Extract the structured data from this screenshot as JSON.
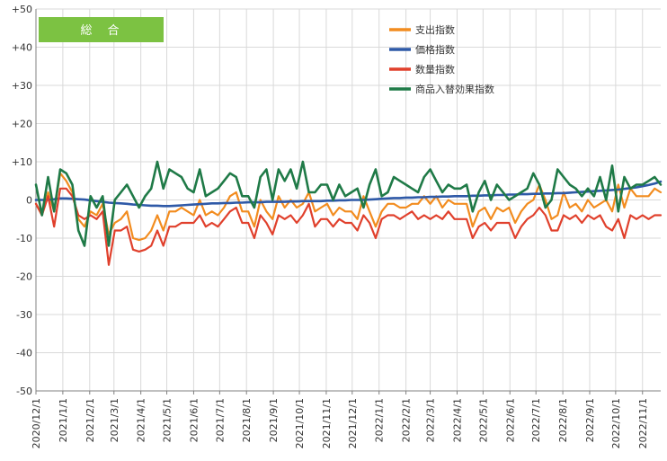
{
  "chart_data": {
    "type": "line",
    "title": "総　合",
    "title_bg": "#7cc242",
    "xlabel": "",
    "ylabel": "",
    "ylim": [
      -50,
      50
    ],
    "yticks": [
      "+50",
      "+40",
      "+30",
      "+20",
      "+10",
      "0",
      "-10",
      "-20",
      "-30",
      "-40",
      "-50"
    ],
    "ytick_values": [
      50,
      40,
      30,
      20,
      10,
      0,
      -10,
      -20,
      -30,
      -40,
      -50
    ],
    "grid": true,
    "legend_position": "top-right",
    "x_labels": [
      "2020/12/1",
      "2021/1/1",
      "2021/2/1",
      "2021/3/1",
      "2021/4/1",
      "2021/5/1",
      "2021/6/1",
      "2021/7/1",
      "2021/8/1",
      "2021/9/1",
      "2021/10/1",
      "2021/11/1",
      "2021/12/1",
      "2022/1/1",
      "2022/2/1",
      "2022/3/1",
      "2022/4/1",
      "2022/5/1",
      "2022/6/1",
      "2022/7/1",
      "2022/8/1",
      "2022/9/1",
      "2022/10/1",
      "2022/11/1"
    ],
    "x_label_index": [
      0,
      4.43,
      8.86,
      12.86,
      17.29,
      21.57,
      26.0,
      30.29,
      34.71,
      39.14,
      43.43,
      47.86,
      52.14,
      56.57,
      61.0,
      65.0,
      69.43,
      73.71,
      78.14,
      82.43,
      86.86,
      91.29,
      95.57,
      100.0
    ],
    "series": [
      {
        "name": "支出指数",
        "color": "#f28c1f",
        "values": [
          -1,
          -4,
          2,
          -3,
          7,
          5,
          2,
          -5,
          -7,
          -3,
          -4,
          -1,
          -9,
          -6,
          -5,
          -3,
          -10,
          -10.5,
          -10,
          -8,
          -4,
          -8,
          -3,
          -3,
          -2,
          -3,
          -4,
          0,
          -4,
          -3,
          -4,
          -2,
          1,
          2,
          -3,
          -3,
          -7,
          0,
          -3,
          -5,
          1,
          -2,
          0,
          -2,
          -1,
          2,
          -3,
          -2,
          -1,
          -4,
          -2,
          -3,
          -3,
          -5,
          1,
          -3,
          -7,
          -3,
          -1,
          -1,
          -2,
          -2,
          -1,
          -1,
          1,
          -1,
          1,
          -2,
          0,
          -1,
          -1,
          -1,
          -7,
          -3,
          -2,
          -5,
          -2,
          -3,
          -2,
          -6,
          -3,
          -1,
          0,
          4,
          0,
          -5,
          -4,
          2,
          -2,
          -1,
          -3,
          0,
          -2,
          -1,
          0,
          -3,
          4,
          -2,
          3,
          1,
          1,
          1,
          3,
          2
        ],
        "width": 2.2
      },
      {
        "name": "価格指数",
        "color": "#2e59a7",
        "values": [
          0,
          0,
          0,
          0.2,
          0.4,
          0.4,
          0.3,
          0.2,
          0.1,
          -0.1,
          -0.3,
          -0.5,
          -0.7,
          -0.8,
          -0.9,
          -1.0,
          -1.2,
          -1.3,
          -1.4,
          -1.5,
          -1.5,
          -1.6,
          -1.6,
          -1.5,
          -1.4,
          -1.3,
          -1.2,
          -1.1,
          -1.0,
          -0.9,
          -0.9,
          -0.8,
          -0.8,
          -0.7,
          -0.7,
          -0.6,
          -0.6,
          -0.6,
          -0.5,
          -0.5,
          -0.5,
          -0.5,
          -0.4,
          -0.4,
          -0.3,
          -0.3,
          -0.3,
          -0.3,
          -0.2,
          -0.2,
          -0.1,
          -0.1,
          0,
          0,
          0,
          0.1,
          0.2,
          0.3,
          0.4,
          0.5,
          0.5,
          0.6,
          0.6,
          0.7,
          0.7,
          0.8,
          0.8,
          0.9,
          0.9,
          1.0,
          1.0,
          1.0,
          1.1,
          1.1,
          1.2,
          1.2,
          1.3,
          1.3,
          1.4,
          1.4,
          1.5,
          1.5,
          1.6,
          1.6,
          1.7,
          1.7,
          1.8,
          1.8,
          1.9,
          2.0,
          2.1,
          2.2,
          2.3,
          2.4,
          2.5,
          2.6,
          2.7,
          2.9,
          3.1,
          3.3,
          3.6,
          3.9,
          4.3,
          4.8
        ],
        "width": 2.6
      },
      {
        "name": "数量指数",
        "color": "#e0402c",
        "values": [
          -1,
          -4,
          1,
          -7,
          3,
          3,
          1,
          -4,
          -5,
          -4,
          -5,
          -3,
          -17,
          -8,
          -8,
          -7,
          -13,
          -13.5,
          -13,
          -12,
          -8,
          -12,
          -7,
          -7,
          -6,
          -6,
          -6,
          -4,
          -7,
          -6,
          -7,
          -5,
          -3,
          -2,
          -6,
          -6,
          -10,
          -4,
          -6,
          -9,
          -4,
          -5,
          -4,
          -6,
          -4,
          -1,
          -7,
          -5,
          -5,
          -7,
          -5,
          -6,
          -6,
          -8,
          -4,
          -6,
          -10,
          -5,
          -4,
          -4,
          -5,
          -4,
          -3,
          -5,
          -4,
          -5,
          -4,
          -5,
          -3,
          -5,
          -5,
          -5,
          -10,
          -7,
          -6,
          -8,
          -6,
          -6,
          -6,
          -10,
          -7,
          -5,
          -4,
          -2,
          -4,
          -8,
          -8,
          -4,
          -5,
          -4,
          -6,
          -4,
          -5,
          -4,
          -7,
          -8,
          -5,
          -10,
          -4,
          -5,
          -4,
          -5,
          -4,
          -4
        ],
        "width": 2.2
      },
      {
        "name": "商品入替効果指数",
        "color": "#1f7a47",
        "values": [
          4,
          -4,
          6,
          -3,
          8,
          7,
          4,
          -8,
          -12,
          1,
          -2,
          1,
          -12,
          0,
          2,
          4,
          1,
          -2,
          1,
          3,
          10,
          3,
          8,
          7,
          6,
          3,
          2,
          8,
          1,
          2,
          3,
          5,
          7,
          6,
          1,
          1,
          -2,
          6,
          8,
          0,
          8,
          5,
          8,
          3,
          10,
          2,
          2,
          4,
          4,
          0,
          4,
          1,
          2,
          3,
          -2,
          4,
          8,
          1,
          2,
          6,
          5,
          4,
          3,
          2,
          6,
          8,
          5,
          2,
          4,
          3,
          3,
          4,
          -3,
          2,
          5,
          0,
          4,
          2,
          0,
          1,
          2,
          3,
          7,
          4,
          -2,
          0,
          8,
          6,
          4,
          3,
          1,
          3,
          1,
          6,
          0,
          9,
          -3,
          6,
          3,
          4,
          4,
          5,
          6,
          4
        ],
        "width": 2.6
      }
    ]
  }
}
